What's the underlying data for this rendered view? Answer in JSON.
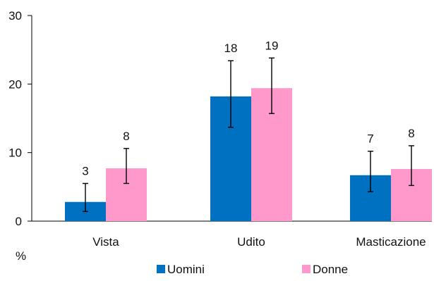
{
  "chart_data": {
    "type": "bar",
    "title": "",
    "xlabel": "",
    "ylabel": "%",
    "ylim": [
      0,
      30
    ],
    "yticks": [
      0,
      10,
      20,
      30
    ],
    "grid": false,
    "legend_position": "bottom",
    "categories": [
      "Vista",
      "Udito",
      "Masticazione"
    ],
    "series": [
      {
        "name": "Uomini",
        "color": "#0070C0",
        "values": [
          2.8,
          18.2,
          6.7
        ],
        "labels": [
          "3",
          "18",
          "7"
        ],
        "error_low": [
          1.4,
          13.7,
          4.3
        ],
        "error_high": [
          5.5,
          23.4,
          10.2
        ]
      },
      {
        "name": "Donne",
        "color": "#FF99CC",
        "values": [
          7.7,
          19.4,
          7.6
        ],
        "labels": [
          "8",
          "19",
          "8"
        ],
        "error_low": [
          5.5,
          15.7,
          5.2
        ],
        "error_high": [
          10.6,
          23.8,
          11.0
        ]
      }
    ]
  }
}
